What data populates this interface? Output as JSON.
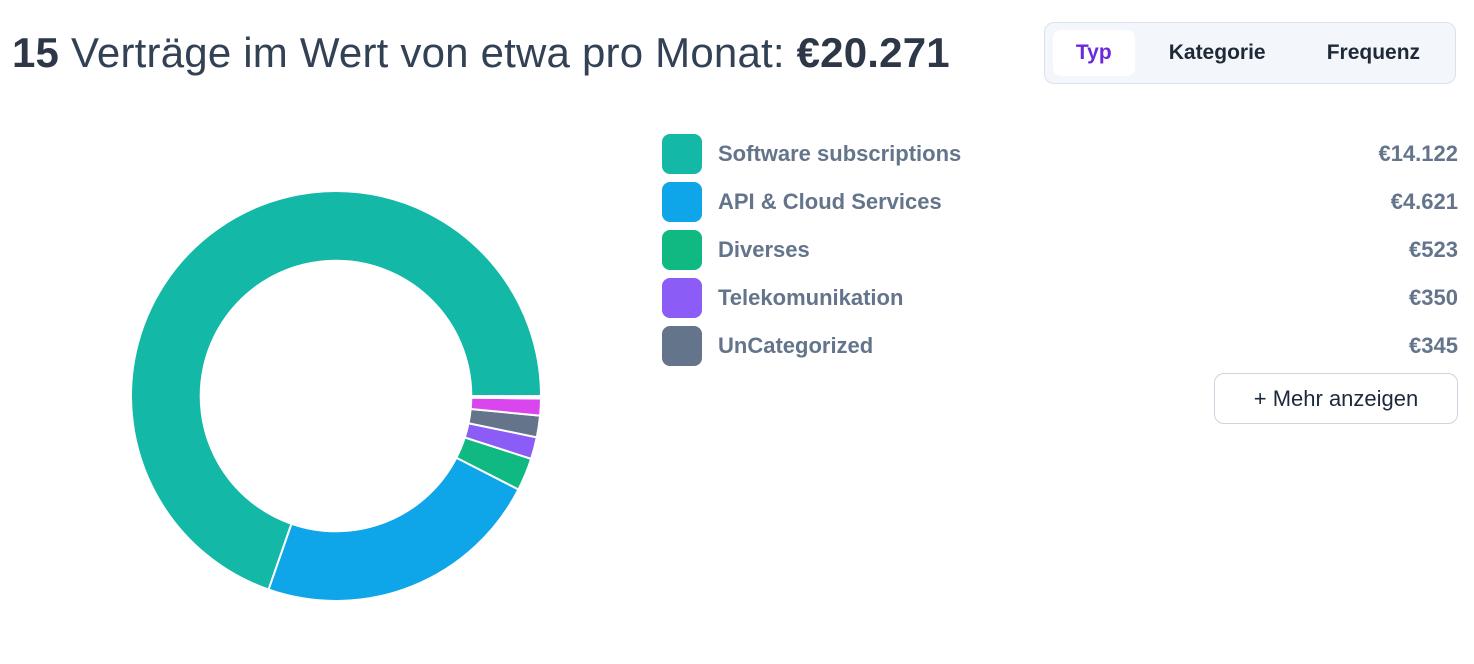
{
  "header": {
    "count": "15",
    "text": "Verträge im Wert von etwa pro Monat:",
    "total": "€20.271"
  },
  "tabs": [
    {
      "label": "Typ",
      "active": true
    },
    {
      "label": "Kategorie",
      "active": false
    },
    {
      "label": "Frequenz",
      "active": false
    }
  ],
  "legend": [
    {
      "label": "Software subscriptions",
      "value": "€14.122",
      "color": "#14b8a6"
    },
    {
      "label": "API & Cloud Services",
      "value": "€4.621",
      "color": "#0ea5e9"
    },
    {
      "label": "Diverses",
      "value": "€523",
      "color": "#10b981"
    },
    {
      "label": "Telekomunikation",
      "value": "€350",
      "color": "#8b5cf6"
    },
    {
      "label": "UnCategorized",
      "value": "€345",
      "color": "#64748b"
    }
  ],
  "more_button": "+ Mehr anzeigen",
  "chart_data": {
    "type": "pie",
    "hole": 0.66,
    "categories": [
      "Software subscriptions",
      "API & Cloud Services",
      "Diverses",
      "Telekomunikation",
      "UnCategorized",
      "",
      "",
      "",
      "",
      "",
      "",
      "",
      "",
      "",
      ""
    ],
    "values": [
      14122,
      4621,
      523,
      350,
      345,
      270,
      10,
      6,
      5,
      5,
      4,
      3,
      3,
      2,
      2
    ],
    "colors": [
      "#14b8a6",
      "#0ea5e9",
      "#10b981",
      "#8b5cf6",
      "#64748b",
      "#d946ef",
      "#14b8a6",
      "#0ea5e9",
      "#10b981",
      "#8b5cf6",
      "#64748b",
      "#14b8a6",
      "#0ea5e9",
      "#10b981",
      "#8b5cf6"
    ],
    "start_angle_deg": 0,
    "direction": "clockwise-from-east-reversed"
  }
}
